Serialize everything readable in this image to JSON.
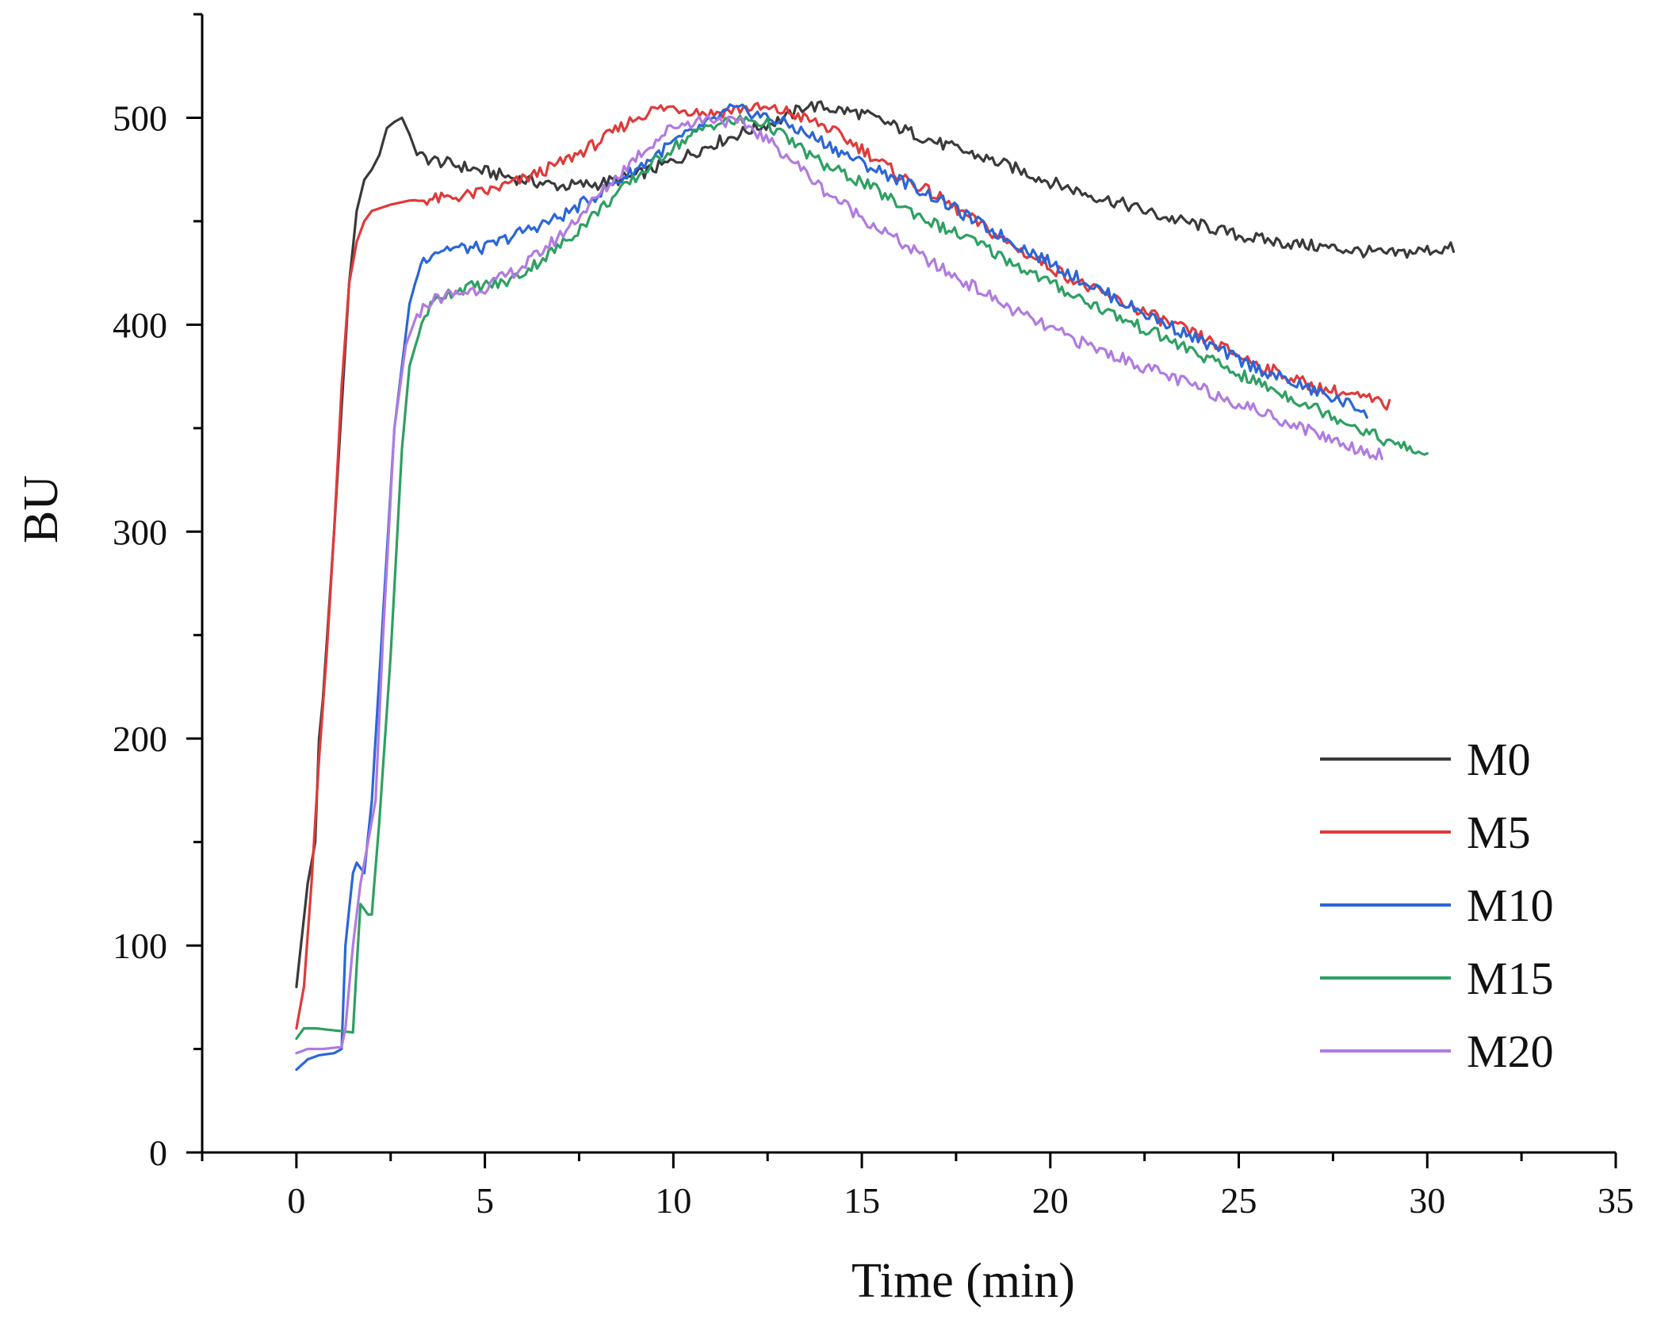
{
  "chart_data": {
    "type": "line",
    "title": "",
    "xlabel": "Time (min)",
    "ylabel": "BU",
    "xlim": [
      -2.5,
      35
    ],
    "ylim": [
      0,
      550
    ],
    "xticks": [
      0,
      5,
      10,
      15,
      20,
      25,
      30,
      35
    ],
    "yticks": [
      0,
      100,
      200,
      300,
      400,
      500
    ],
    "legend_position": "bottom-right",
    "grid": false,
    "series": [
      {
        "name": "M0",
        "color": "#3a3a3a",
        "points": [
          [
            0,
            80
          ],
          [
            0.15,
            105
          ],
          [
            0.3,
            130
          ],
          [
            0.5,
            150
          ],
          [
            0.6,
            200
          ],
          [
            0.7,
            218
          ],
          [
            0.8,
            245
          ],
          [
            1.0,
            300
          ],
          [
            1.2,
            360
          ],
          [
            1.4,
            420
          ],
          [
            1.6,
            455
          ],
          [
            1.8,
            470
          ],
          [
            2.0,
            475
          ],
          [
            2.2,
            482
          ],
          [
            2.4,
            495
          ],
          [
            2.6,
            498
          ],
          [
            2.8,
            500
          ],
          [
            3.0,
            492
          ],
          [
            3.2,
            482
          ],
          [
            3.5,
            480
          ],
          [
            4.0,
            478
          ],
          [
            5.0,
            474
          ],
          [
            6.0,
            470
          ],
          [
            7.0,
            467
          ],
          [
            8.0,
            468
          ],
          [
            9.0,
            472
          ],
          [
            10.0,
            479
          ],
          [
            11.0,
            487
          ],
          [
            12.0,
            494
          ],
          [
            13.0,
            500
          ],
          [
            13.5,
            506
          ],
          [
            14.0,
            505
          ],
          [
            15.0,
            502
          ],
          [
            16.0,
            495
          ],
          [
            17.0,
            488
          ],
          [
            18.0,
            482
          ],
          [
            19.0,
            476
          ],
          [
            20.0,
            469
          ],
          [
            21.0,
            463
          ],
          [
            22.0,
            458
          ],
          [
            23.0,
            452
          ],
          [
            24.0,
            448
          ],
          [
            25.0,
            443
          ],
          [
            26.0,
            440
          ],
          [
            27.0,
            438
          ],
          [
            28.0,
            436
          ],
          [
            29.0,
            434
          ],
          [
            30.0,
            436
          ],
          [
            30.7,
            437
          ]
        ]
      },
      {
        "name": "M5",
        "color": "#e03a3a",
        "points": [
          [
            0,
            60
          ],
          [
            0.2,
            80
          ],
          [
            0.4,
            130
          ],
          [
            0.6,
            190
          ],
          [
            0.8,
            240
          ],
          [
            1.0,
            300
          ],
          [
            1.2,
            370
          ],
          [
            1.4,
            420
          ],
          [
            1.6,
            440
          ],
          [
            1.8,
            450
          ],
          [
            2.0,
            455
          ],
          [
            2.5,
            458
          ],
          [
            3.0,
            460
          ],
          [
            4.0,
            461
          ],
          [
            5.0,
            464
          ],
          [
            6.0,
            470
          ],
          [
            7.0,
            478
          ],
          [
            8.0,
            488
          ],
          [
            9.0,
            500
          ],
          [
            9.5,
            504
          ],
          [
            10.0,
            505
          ],
          [
            11.0,
            502
          ],
          [
            12.0,
            505
          ],
          [
            13.0,
            503
          ],
          [
            14.0,
            496
          ],
          [
            15.0,
            485
          ],
          [
            16.0,
            472
          ],
          [
            17.0,
            462
          ],
          [
            18.0,
            450
          ],
          [
            19.0,
            438
          ],
          [
            20.0,
            428
          ],
          [
            21.0,
            418
          ],
          [
            22.0,
            410
          ],
          [
            23.0,
            402
          ],
          [
            24.0,
            394
          ],
          [
            25.0,
            385
          ],
          [
            26.0,
            377
          ],
          [
            27.0,
            370
          ],
          [
            28.0,
            366
          ],
          [
            29.0,
            361
          ]
        ]
      },
      {
        "name": "M10",
        "color": "#2a66d8",
        "points": [
          [
            0,
            40
          ],
          [
            0.3,
            45
          ],
          [
            0.6,
            47
          ],
          [
            1.0,
            48
          ],
          [
            1.2,
            50
          ],
          [
            1.3,
            100
          ],
          [
            1.5,
            135
          ],
          [
            1.6,
            140
          ],
          [
            1.8,
            135
          ],
          [
            2.0,
            170
          ],
          [
            2.3,
            260
          ],
          [
            2.6,
            350
          ],
          [
            3.0,
            410
          ],
          [
            3.3,
            430
          ],
          [
            3.6,
            435
          ],
          [
            4.0,
            437
          ],
          [
            5.0,
            437
          ],
          [
            6.0,
            445
          ],
          [
            7.0,
            452
          ],
          [
            8.0,
            463
          ],
          [
            9.0,
            475
          ],
          [
            10.0,
            488
          ],
          [
            11.0,
            498
          ],
          [
            11.5,
            504
          ],
          [
            12.0,
            503
          ],
          [
            13.0,
            497
          ],
          [
            14.0,
            488
          ],
          [
            15.0,
            478
          ],
          [
            16.0,
            470
          ],
          [
            17.0,
            461
          ],
          [
            18.0,
            450
          ],
          [
            19.0,
            440
          ],
          [
            20.0,
            430
          ],
          [
            21.0,
            420
          ],
          [
            22.0,
            410
          ],
          [
            23.0,
            401
          ],
          [
            24.0,
            392
          ],
          [
            25.0,
            383
          ],
          [
            26.0,
            375
          ],
          [
            27.0,
            368
          ],
          [
            28.0,
            361
          ],
          [
            28.4,
            358
          ]
        ]
      },
      {
        "name": "M15",
        "color": "#2ea062",
        "points": [
          [
            0,
            55
          ],
          [
            0.2,
            60
          ],
          [
            0.5,
            60
          ],
          [
            1.0,
            59
          ],
          [
            1.5,
            58
          ],
          [
            1.6,
            90
          ],
          [
            1.7,
            120
          ],
          [
            1.9,
            115
          ],
          [
            2.0,
            115
          ],
          [
            2.2,
            160
          ],
          [
            2.5,
            240
          ],
          [
            2.8,
            340
          ],
          [
            3.0,
            380
          ],
          [
            3.4,
            405
          ],
          [
            3.8,
            414
          ],
          [
            4.5,
            418
          ],
          [
            5.5,
            420
          ],
          [
            6.0,
            425
          ],
          [
            7.0,
            438
          ],
          [
            8.0,
            455
          ],
          [
            9.0,
            471
          ],
          [
            10.0,
            486
          ],
          [
            11.0,
            497
          ],
          [
            12.0,
            499
          ],
          [
            12.5,
            497
          ],
          [
            13.0,
            490
          ],
          [
            14.0,
            477
          ],
          [
            15.0,
            469
          ],
          [
            16.0,
            458
          ],
          [
            17.0,
            448
          ],
          [
            18.0,
            440
          ],
          [
            19.0,
            430
          ],
          [
            20.0,
            420
          ],
          [
            21.0,
            411
          ],
          [
            22.0,
            402
          ],
          [
            23.0,
            394
          ],
          [
            24.0,
            385
          ],
          [
            25.0,
            376
          ],
          [
            26.0,
            368
          ],
          [
            27.0,
            360
          ],
          [
            28.0,
            352
          ],
          [
            29.0,
            343
          ],
          [
            30.0,
            337
          ]
        ]
      },
      {
        "name": "M20",
        "color": "#b07be0",
        "points": [
          [
            0,
            48
          ],
          [
            0.3,
            50
          ],
          [
            0.7,
            50
          ],
          [
            1.2,
            51
          ],
          [
            1.3,
            60
          ],
          [
            1.5,
            100
          ],
          [
            1.7,
            130
          ],
          [
            1.9,
            150
          ],
          [
            2.1,
            170
          ],
          [
            2.3,
            250
          ],
          [
            2.6,
            350
          ],
          [
            2.9,
            390
          ],
          [
            3.2,
            405
          ],
          [
            3.6,
            412
          ],
          [
            4.0,
            414
          ],
          [
            5.0,
            418
          ],
          [
            6.0,
            428
          ],
          [
            7.0,
            443
          ],
          [
            8.0,
            462
          ],
          [
            9.0,
            481
          ],
          [
            10.0,
            496
          ],
          [
            11.0,
            500
          ],
          [
            12.0,
            496
          ],
          [
            13.0,
            482
          ],
          [
            14.0,
            465
          ],
          [
            15.0,
            452
          ],
          [
            16.0,
            440
          ],
          [
            17.0,
            428
          ],
          [
            18.0,
            418
          ],
          [
            19.0,
            407
          ],
          [
            20.0,
            398
          ],
          [
            21.0,
            390
          ],
          [
            22.0,
            383
          ],
          [
            23.0,
            376
          ],
          [
            24.0,
            369
          ],
          [
            25.0,
            362
          ],
          [
            26.0,
            355
          ],
          [
            27.0,
            348
          ],
          [
            28.0,
            341
          ],
          [
            28.8,
            337
          ]
        ]
      }
    ]
  }
}
